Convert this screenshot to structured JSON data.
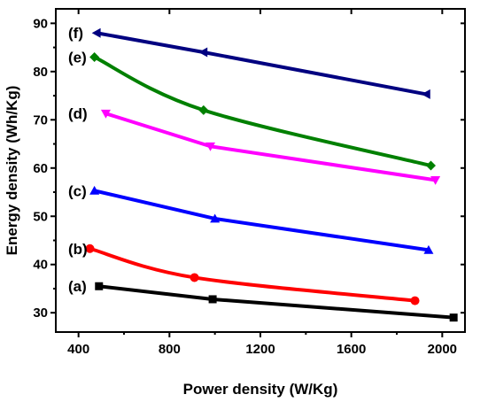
{
  "chart_data": {
    "type": "line",
    "xlabel": "Power density (W/Kg)",
    "ylabel": "Energy density (Wh/Kg)",
    "xlim": [
      300,
      2100
    ],
    "ylim": [
      26,
      93
    ],
    "xticks": [
      400,
      800,
      1200,
      1600,
      2000
    ],
    "yticks": [
      30,
      40,
      50,
      60,
      70,
      80,
      90
    ],
    "grid": false,
    "series": [
      {
        "name": "(a)",
        "color": "#000000",
        "marker": "square",
        "x": [
          490,
          990,
          2050
        ],
        "y": [
          35.5,
          32.8,
          29.0
        ]
      },
      {
        "name": "(b)",
        "color": "#ff0000",
        "marker": "circle",
        "x": [
          450,
          910,
          1880
        ],
        "y": [
          43.3,
          37.3,
          32.5
        ]
      },
      {
        "name": "(c)",
        "color": "#0000ff",
        "marker": "triangle-up",
        "x": [
          470,
          1000,
          1940
        ],
        "y": [
          55.3,
          49.5,
          43.0
        ]
      },
      {
        "name": "(d)",
        "color": "#ff00ff",
        "marker": "triangle-down",
        "x": [
          520,
          980,
          1970
        ],
        "y": [
          71.3,
          64.5,
          57.5
        ]
      },
      {
        "name": "(e)",
        "color": "#008000",
        "marker": "diamond",
        "x": [
          470,
          950,
          1950
        ],
        "y": [
          83.0,
          72.0,
          60.5
        ]
      },
      {
        "name": "(f)",
        "color": "#000080",
        "marker": "triangle-left",
        "x": [
          480,
          950,
          1930
        ],
        "y": [
          88.0,
          84.0,
          75.3
        ]
      }
    ]
  }
}
